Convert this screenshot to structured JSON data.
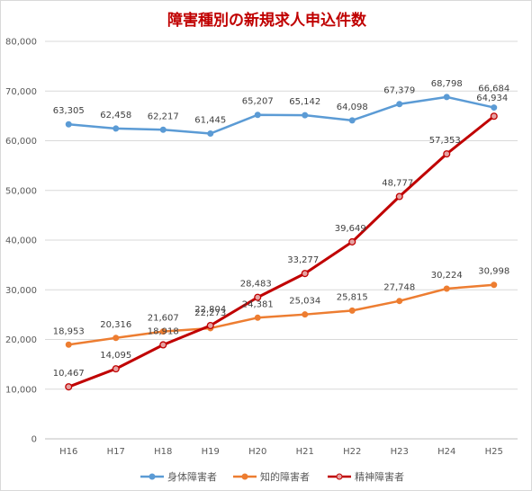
{
  "chart_data": {
    "type": "line",
    "title": "障害種別の新規求人申込件数",
    "xlabel": "",
    "ylabel": "",
    "categories": [
      "H16",
      "H17",
      "H18",
      "H19",
      "H20",
      "H21",
      "H22",
      "H23",
      "H24",
      "H25"
    ],
    "ylim": [
      0,
      80000
    ],
    "yticks": [
      0,
      10000,
      20000,
      30000,
      40000,
      50000,
      60000,
      70000,
      80000
    ],
    "ytick_labels": [
      "0",
      "10,000",
      "20,000",
      "30,000",
      "40,000",
      "50,000",
      "60,000",
      "70,000",
      "80,000"
    ],
    "grid": true,
    "legend_position": "bottom",
    "series": [
      {
        "name": "身体障害者",
        "color": "#5b9bd5",
        "values": [
          63305,
          62458,
          62217,
          61445,
          65207,
          65142,
          64098,
          67379,
          68798,
          66684
        ],
        "labels": [
          "63,305",
          "62,458",
          "62,217",
          "61,445",
          "65,207",
          "65,142",
          "64,098",
          "67,379",
          "68,798",
          "66,684"
        ]
      },
      {
        "name": "知的障害者",
        "color": "#ed7d31",
        "values": [
          18953,
          20316,
          21607,
          22273,
          24381,
          25034,
          25815,
          27748,
          30224,
          30998
        ],
        "labels": [
          "18,953",
          "20,316",
          "21,607",
          "22,273",
          "24,381",
          "25,034",
          "25,815",
          "27,748",
          "30,224",
          "30,998"
        ]
      },
      {
        "name": "精神障害者",
        "color": "#c00000",
        "marker_fill": "#e6a3a3",
        "values": [
          10467,
          14095,
          18918,
          22804,
          28483,
          33277,
          39649,
          48777,
          57353,
          64934
        ],
        "labels": [
          "10,467",
          "14,095",
          "18,918",
          "22,804",
          "28,483",
          "33,277",
          "39,649",
          "48,777",
          "57,353",
          "64,934"
        ]
      }
    ]
  }
}
